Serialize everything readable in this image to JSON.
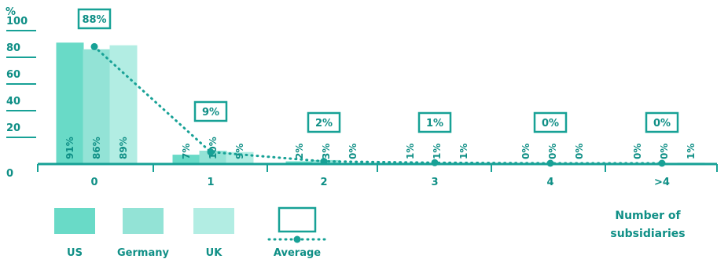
{
  "chart_data": {
    "type": "bar",
    "y_unit_label": "%",
    "y_ticks": [
      0,
      20,
      40,
      60,
      80,
      100
    ],
    "ylim": [
      0,
      100
    ],
    "categories": [
      "0",
      "1",
      "2",
      "3",
      "4",
      ">4"
    ],
    "series": [
      {
        "name": "US",
        "color": "#69dac7",
        "values": [
          91,
          7,
          2,
          1,
          0,
          0
        ]
      },
      {
        "name": "Germany",
        "color": "#93e3d6",
        "values": [
          86,
          10,
          3,
          1,
          0,
          0
        ]
      },
      {
        "name": "UK",
        "color": "#b2ede3",
        "values": [
          89,
          9,
          0,
          1,
          0,
          1
        ]
      }
    ],
    "average": {
      "name": "Average",
      "color": "#17a196",
      "values": [
        88,
        9,
        2,
        1,
        0,
        0
      ]
    },
    "xlabel": "Number of subsidiaries",
    "legend": [
      {
        "key": "US",
        "label": "US"
      },
      {
        "key": "Germany",
        "label": "Germany"
      },
      {
        "key": "UK",
        "label": "UK"
      },
      {
        "key": "Average",
        "label": "Average"
      }
    ]
  }
}
